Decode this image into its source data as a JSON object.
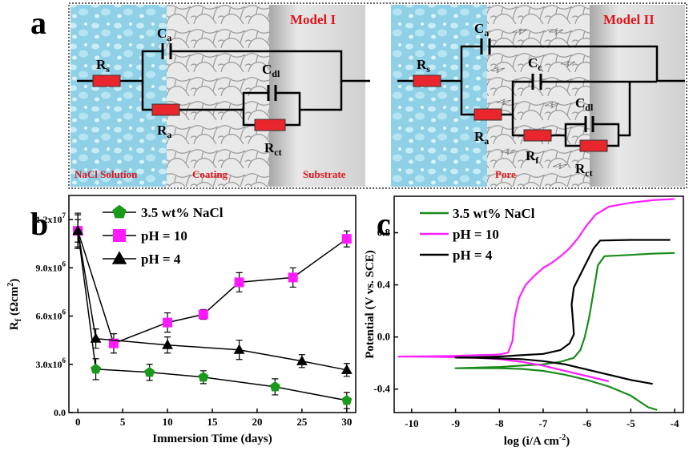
{
  "panel_a": {
    "letter": "a",
    "model1": {
      "title": "Model I",
      "zone_labels": [
        "NaCl Solution",
        "Coating",
        "Substrate"
      ],
      "components": [
        {
          "name": "R",
          "sub": "s",
          "kind": "resistor"
        },
        {
          "name": "C",
          "sub": "a",
          "kind": "capacitor"
        },
        {
          "name": "R",
          "sub": "a",
          "kind": "resistor"
        },
        {
          "name": "C",
          "sub": "dl",
          "kind": "capacitor"
        },
        {
          "name": "R",
          "sub": "ct",
          "kind": "resistor"
        }
      ]
    },
    "model2": {
      "title": "Model II",
      "zone_labels": [
        "Pore"
      ],
      "components": [
        {
          "name": "R",
          "sub": "s",
          "kind": "resistor"
        },
        {
          "name": "C",
          "sub": "a",
          "kind": "capacitor"
        },
        {
          "name": "C",
          "sub": "c",
          "kind": "capacitor"
        },
        {
          "name": "R",
          "sub": "a",
          "kind": "resistor"
        },
        {
          "name": "C",
          "sub": "dl",
          "kind": "capacitor"
        },
        {
          "name": "R",
          "sub": "f",
          "kind": "resistor"
        },
        {
          "name": "R",
          "sub": "ct",
          "kind": "resistor"
        }
      ]
    },
    "colors": {
      "solution": "#8fd0e6",
      "coating": "#e6e6e6",
      "substrate": "#d8d8d8",
      "resistor": "#e8262b",
      "label_red": "#e0141b"
    }
  },
  "chart_data": [
    {
      "panel": "b",
      "type": "line",
      "xlabel": "Immersion Time (days)",
      "ylabel": "R",
      "ylabel_sub": "f",
      "ylabel_unit": "(Ωcm",
      "ylabel_exp": "2",
      "ylabel_close": ")",
      "xlim": [
        -1,
        31
      ],
      "ylim": [
        0,
        13500000.0
      ],
      "xticks": [
        0,
        5,
        10,
        15,
        20,
        25,
        30
      ],
      "xtick_labels": [
        "0",
        "5",
        "10",
        "15",
        "20",
        "25",
        "30"
      ],
      "yticks": [
        0,
        3000000,
        6000000,
        9000000,
        12000000
      ],
      "ytick_labels": [
        {
          "base": "0.0",
          "exp": ""
        },
        {
          "base": "3.0x10",
          "exp": "6"
        },
        {
          "base": "6.0x10",
          "exp": "6"
        },
        {
          "base": "9.0x10",
          "exp": "6"
        },
        {
          "base": "1.2x10",
          "exp": "7"
        }
      ],
      "legend": "top-left",
      "series": [
        {
          "name": "3.5 wt% NaCl",
          "color": "#1a9a1a",
          "marker": "pentagon",
          "x": [
            0,
            2,
            8,
            14,
            22,
            30
          ],
          "y": [
            11300000,
            2700000,
            2500000,
            2200000,
            1600000,
            750000
          ],
          "err": [
            1000000,
            650000,
            500000,
            400000,
            500000,
            500000
          ]
        },
        {
          "name": "pH = 10",
          "color": "#ff1aff",
          "marker": "square",
          "x": [
            0,
            4,
            10,
            14,
            18,
            24,
            30
          ],
          "y": [
            11300000,
            4300000,
            5600000,
            6100000,
            8100000,
            8400000,
            10800000
          ],
          "err": [
            700000,
            600000,
            600000,
            300000,
            600000,
            600000,
            500000
          ]
        },
        {
          "name": "pH = 4",
          "color": "#000000",
          "marker": "triangle",
          "x": [
            0,
            2,
            10,
            18,
            25,
            30
          ],
          "y": [
            11300000,
            4600000,
            4200000,
            3900000,
            3200000,
            2650000
          ],
          "err": [
            1100000,
            600000,
            500000,
            600000,
            400000,
            400000
          ]
        }
      ]
    },
    {
      "panel": "c",
      "type": "line",
      "xlabel": "log (i/A cm",
      "xlabel_exp": "-2",
      "xlabel_close": ")",
      "ylabel": "Potential (V vs. SCE)",
      "xlim": [
        -10.4,
        -3.8
      ],
      "ylim": [
        -0.58,
        1.08
      ],
      "xticks": [
        -10,
        -9,
        -8,
        -7,
        -6,
        -5,
        -4
      ],
      "xtick_labels": [
        "-10",
        "-9",
        "-8",
        "-7",
        "-6",
        "-5",
        "-4"
      ],
      "yticks": [
        -0.4,
        0,
        0.4,
        0.8
      ],
      "ytick_labels": [
        "-0.4",
        "0.0",
        "0.4",
        "0.8"
      ],
      "legend": "top-left",
      "series": [
        {
          "name": "3.5 wt% NaCl",
          "color": "#1a8c1a",
          "points": [
            [
              -4.4,
              -0.56
            ],
            [
              -4.6,
              -0.54
            ],
            [
              -5.0,
              -0.45
            ],
            [
              -5.5,
              -0.38
            ],
            [
              -6.0,
              -0.33
            ],
            [
              -6.5,
              -0.29
            ],
            [
              -7.0,
              -0.26
            ],
            [
              -7.5,
              -0.245
            ],
            [
              -8.0,
              -0.24
            ],
            [
              -8.5,
              -0.24
            ],
            [
              -9.0,
              -0.24
            ],
            [
              -8.5,
              -0.235
            ],
            [
              -8.0,
              -0.23
            ],
            [
              -7.5,
              -0.22
            ],
            [
              -7.0,
              -0.21
            ],
            [
              -6.6,
              -0.19
            ],
            [
              -6.3,
              -0.16
            ],
            [
              -6.15,
              -0.1
            ],
            [
              -6.05,
              0.0
            ],
            [
              -5.95,
              0.15
            ],
            [
              -5.85,
              0.35
            ],
            [
              -5.75,
              0.55
            ],
            [
              -5.6,
              0.62
            ],
            [
              -5.0,
              0.63
            ],
            [
              -4.5,
              0.64
            ],
            [
              -4.0,
              0.645
            ]
          ]
        },
        {
          "name": "pH = 10",
          "color": "#ff20ff",
          "points": [
            [
              -5.5,
              -0.34
            ],
            [
              -6.0,
              -0.3
            ],
            [
              -6.5,
              -0.26
            ],
            [
              -7.0,
              -0.22
            ],
            [
              -7.5,
              -0.19
            ],
            [
              -8.0,
              -0.17
            ],
            [
              -8.5,
              -0.16
            ],
            [
              -9.0,
              -0.155
            ],
            [
              -9.5,
              -0.152
            ],
            [
              -10.3,
              -0.15
            ],
            [
              -9.5,
              -0.148
            ],
            [
              -9.0,
              -0.145
            ],
            [
              -8.5,
              -0.14
            ],
            [
              -8.0,
              -0.135
            ],
            [
              -7.8,
              -0.12
            ],
            [
              -7.7,
              -0.03
            ],
            [
              -7.65,
              0.15
            ],
            [
              -7.55,
              0.3
            ],
            [
              -7.4,
              0.4
            ],
            [
              -7.2,
              0.47
            ],
            [
              -7.0,
              0.53
            ],
            [
              -6.8,
              0.57
            ],
            [
              -6.6,
              0.62
            ],
            [
              -6.4,
              0.68
            ],
            [
              -6.2,
              0.76
            ],
            [
              -6.0,
              0.86
            ],
            [
              -5.8,
              0.94
            ],
            [
              -5.5,
              1.0
            ],
            [
              -5.0,
              1.03
            ],
            [
              -4.5,
              1.05
            ],
            [
              -4.0,
              1.06
            ]
          ]
        },
        {
          "name": "pH = 4",
          "color": "#000000",
          "points": [
            [
              -4.5,
              -0.36
            ],
            [
              -5.0,
              -0.33
            ],
            [
              -5.5,
              -0.29
            ],
            [
              -6.0,
              -0.25
            ],
            [
              -6.5,
              -0.21
            ],
            [
              -7.0,
              -0.185
            ],
            [
              -7.5,
              -0.17
            ],
            [
              -8.0,
              -0.165
            ],
            [
              -8.5,
              -0.16
            ],
            [
              -9.0,
              -0.158
            ],
            [
              -8.5,
              -0.155
            ],
            [
              -8.0,
              -0.15
            ],
            [
              -7.5,
              -0.14
            ],
            [
              -7.0,
              -0.13
            ],
            [
              -6.6,
              -0.1
            ],
            [
              -6.4,
              -0.05
            ],
            [
              -6.3,
              0.02
            ],
            [
              -6.32,
              0.12
            ],
            [
              -6.35,
              0.25
            ],
            [
              -6.3,
              0.38
            ],
            [
              -6.15,
              0.48
            ],
            [
              -6.0,
              0.58
            ],
            [
              -5.85,
              0.68
            ],
            [
              -5.7,
              0.74
            ],
            [
              -5.0,
              0.745
            ],
            [
              -4.5,
              0.745
            ],
            [
              -4.1,
              0.745
            ]
          ]
        }
      ]
    }
  ],
  "panel_b_letter": "b",
  "panel_c_letter": "c"
}
